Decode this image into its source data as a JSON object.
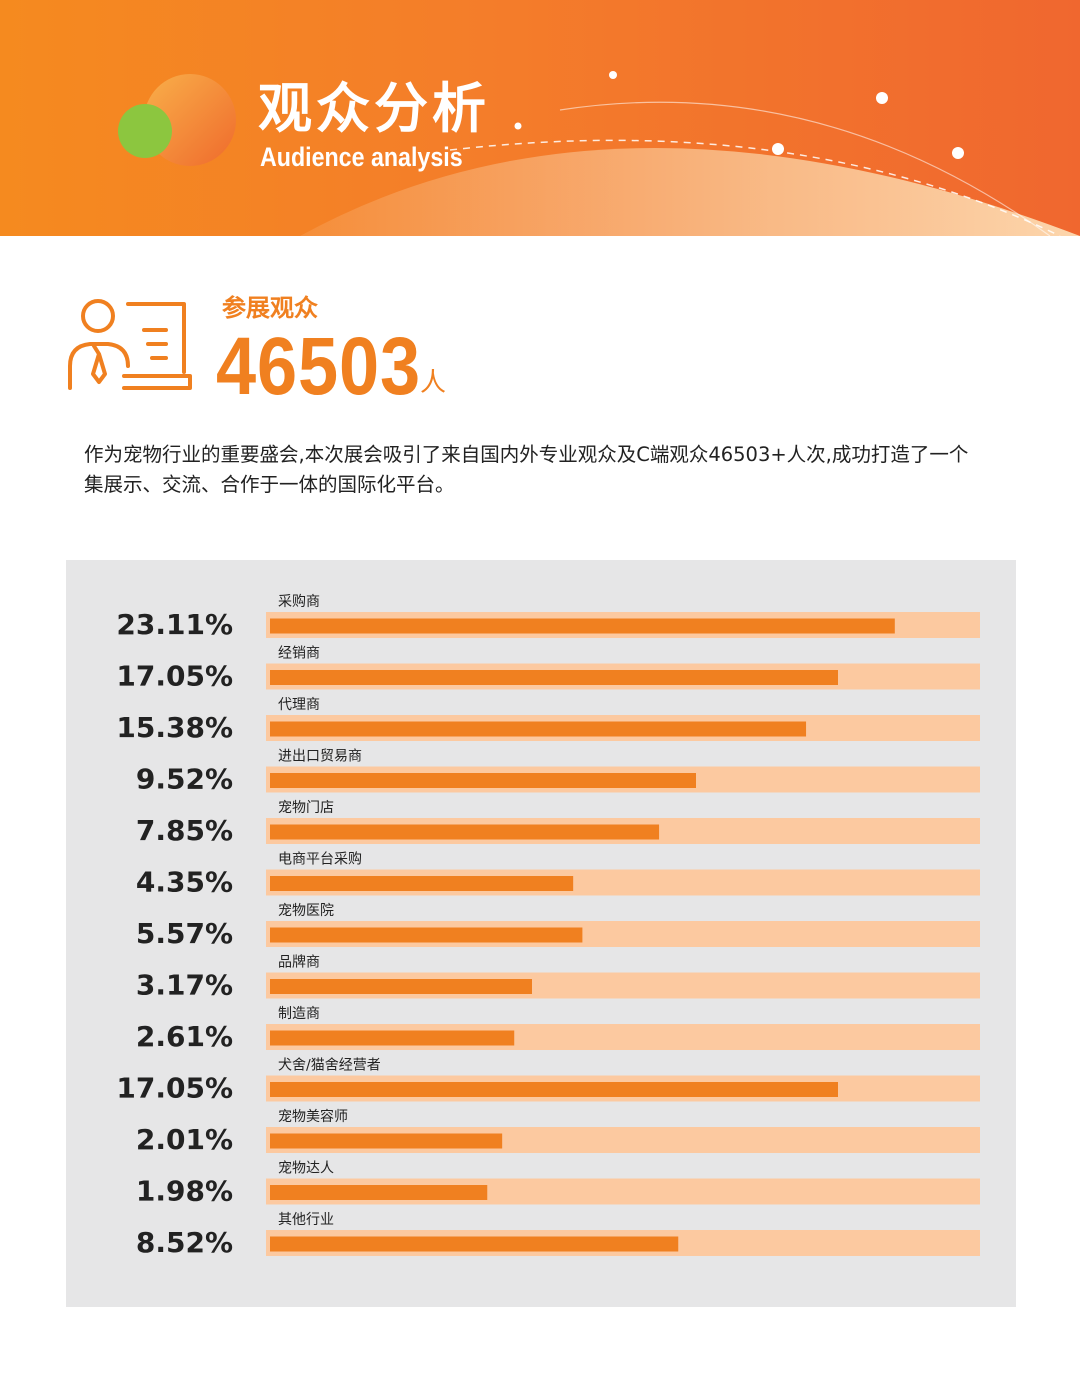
{
  "header": {
    "title_cn": "观众分析",
    "title_en": "Audience analysis"
  },
  "stat": {
    "label": "参展观众",
    "value": "46503",
    "unit": "人",
    "icon": "presenter-board-icon"
  },
  "description": "作为宠物行业的重要盛会,本次展会吸引了来自国内外专业观众及C端观众46503+人次,成功打造了一个集展示、交流、合作于一体的国际化平台。",
  "colors": {
    "accent": "#f08020",
    "bar_track": "#fcc9a0",
    "panel_bg": "#e6e6e7",
    "header_start": "#f58a1f",
    "header_end": "#f0672f",
    "circle_green": "#8cc63f"
  },
  "chart_data": {
    "type": "bar",
    "orientation": "horizontal",
    "categories": [
      "采购商",
      "经销商",
      "代理商",
      "进出口贸易商",
      "宠物门店",
      "电商平台采购",
      "宠物医院",
      "品牌商",
      "制造商",
      "犬舍/猫舍经营者",
      "宠物美容师",
      "宠物达人",
      "其他行业"
    ],
    "labels": [
      "23.11%",
      "17.05%",
      "15.38%",
      "9.52%",
      "7.85%",
      "4.35%",
      "5.57%",
      "3.17%",
      "2.61%",
      "17.05%",
      "2.01%",
      "1.98%",
      "8.52%"
    ],
    "values": [
      23.11,
      17.05,
      15.38,
      9.52,
      7.85,
      4.35,
      5.57,
      3.17,
      2.61,
      17.05,
      2.01,
      1.98,
      8.52
    ],
    "bar_fill_fraction": [
      0.88,
      0.8,
      0.755,
      0.6,
      0.548,
      0.427,
      0.44,
      0.369,
      0.344,
      0.8,
      0.327,
      0.306,
      0.575
    ],
    "title": "",
    "xlabel": "",
    "ylabel": "",
    "grid": false,
    "legend": "none"
  }
}
